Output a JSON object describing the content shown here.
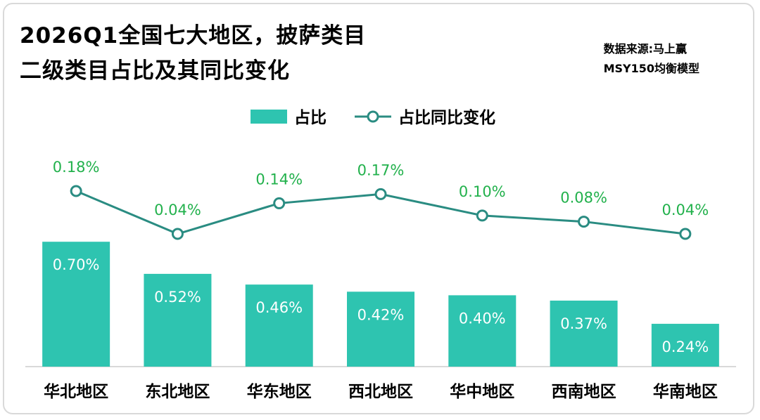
{
  "chart_data": {
    "type": "bar",
    "title_line1": "2026Q1全国七大地区，披萨类目",
    "title_line2": "二级类目占比及其同比变化",
    "source_line1": "数据来源:马上赢",
    "source_line2": "MSY150均衡模型",
    "categories": [
      "华北地区",
      "东北地区",
      "华东地区",
      "西北地区",
      "华中地区",
      "西南地区",
      "华南地区"
    ],
    "series": [
      {
        "name": "占比",
        "type": "bar",
        "color": "#2ec4b0",
        "values": [
          0.7,
          0.52,
          0.46,
          0.42,
          0.4,
          0.37,
          0.24
        ],
        "labels": [
          "0.70%",
          "0.52%",
          "0.46%",
          "0.42%",
          "0.40%",
          "0.37%",
          "0.24%"
        ]
      },
      {
        "name": "占比同比变化",
        "type": "line",
        "color": "#2a8c82",
        "label_color": "#22b14c",
        "values": [
          0.18,
          0.04,
          0.14,
          0.17,
          0.1,
          0.08,
          0.04
        ],
        "labels": [
          "0.18%",
          "0.04%",
          "0.14%",
          "0.17%",
          "0.10%",
          "0.08%",
          "0.04%"
        ]
      }
    ],
    "legend_position": "top-center",
    "grid": false
  }
}
